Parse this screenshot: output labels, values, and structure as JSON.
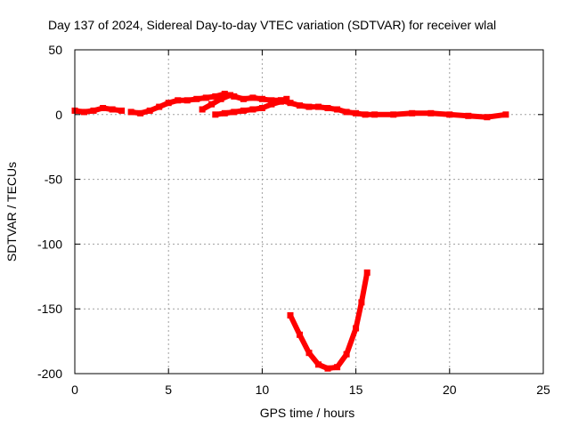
{
  "chart_data": {
    "type": "scatter",
    "title": "Day 137 of 2024, Sidereal Day-to-day VTEC variation (SDTVAR) for receiver wlal",
    "xlabel": "GPS time / hours",
    "ylabel": "SDTVAR / TECUs",
    "xlim": [
      0,
      25
    ],
    "ylim": [
      -200,
      50
    ],
    "xticks": [
      "0",
      "5",
      "10",
      "15",
      "20",
      "25"
    ],
    "yticks": [
      "-200",
      "-150",
      "-100",
      "-50",
      "0",
      "50"
    ],
    "grid": true,
    "legend": "none",
    "series_color": "#ff0000",
    "series": [
      {
        "x": [
          0.0,
          0.5,
          1.0,
          1.5,
          2.0,
          2.5
        ],
        "y": [
          3,
          2,
          3,
          5,
          4,
          3
        ]
      },
      {
        "x": [
          3.0,
          3.5,
          4.0,
          4.5,
          5.0,
          5.5,
          6.0,
          6.5,
          7.0,
          7.5,
          8.0,
          8.5,
          9.0,
          9.5,
          10.0,
          10.5,
          11.0
        ],
        "y": [
          2,
          1,
          3,
          6,
          9,
          11,
          11,
          12,
          13,
          14,
          16,
          14,
          12,
          13,
          12,
          11,
          11
        ]
      },
      {
        "x": [
          6.8,
          7.3,
          7.8,
          8.3
        ],
        "y": [
          4,
          8,
          12,
          15
        ]
      },
      {
        "x": [
          7.5,
          8.0,
          8.5,
          9.0,
          9.5,
          10.0,
          10.5,
          11.0,
          11.3
        ],
        "y": [
          0,
          1,
          2,
          3,
          4,
          5,
          8,
          10,
          12
        ]
      },
      {
        "x": [
          11.0,
          11.5,
          12.0,
          12.5,
          13.0,
          13.5,
          14.0,
          14.5,
          15.0,
          15.5,
          16.0,
          17.0,
          18.0,
          19.0,
          20.0,
          21.0,
          22.0,
          23.0
        ],
        "y": [
          11,
          9,
          7,
          6,
          6,
          5,
          4,
          2,
          1,
          0,
          0,
          0,
          1,
          1,
          0,
          -1,
          -2,
          0
        ]
      },
      {
        "x": [
          11.5,
          12.0,
          12.5,
          13.0,
          13.5,
          14.0,
          14.5,
          15.0,
          15.3,
          15.6
        ],
        "y": [
          -155,
          -170,
          -184,
          -193,
          -196,
          -195,
          -185,
          -165,
          -145,
          -122
        ]
      }
    ]
  }
}
